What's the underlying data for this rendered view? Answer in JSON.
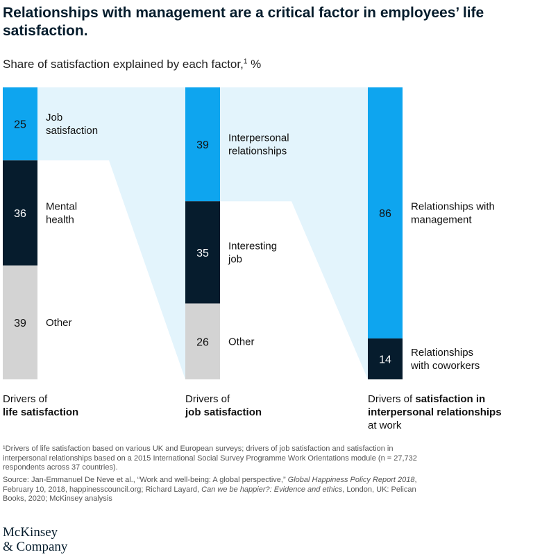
{
  "title": "Relationships with management are a critical factor in employees’ life satisfaction.",
  "subtitle": {
    "text": "Share of satisfaction explained by each factor,",
    "footnote_marker": "1",
    "unit": " %"
  },
  "colors": {
    "accent_blue": "#0ea5ef",
    "dark_navy": "#061c2d",
    "gray": "#d3d3d3",
    "flow_blue": "#e3f4fc"
  },
  "chart_data": {
    "type": "bar",
    "stacked": true,
    "unit": "%",
    "columns": [
      {
        "label_prefix": "Drivers of",
        "label_bold": "life satisfaction",
        "label_suffix": "",
        "segments": [
          {
            "name": "Job satisfaction",
            "value": 25,
            "color": "#0ea5ef"
          },
          {
            "name": "Mental health",
            "value": 36,
            "color": "#061c2d"
          },
          {
            "name": "Other",
            "value": 39,
            "color": "#d3d3d3"
          }
        ]
      },
      {
        "label_prefix": "Drivers of",
        "label_bold": "job satisfaction",
        "label_suffix": "",
        "segments": [
          {
            "name": "Interpersonal relationships",
            "value": 39,
            "color": "#0ea5ef"
          },
          {
            "name": "Interesting job",
            "value": 35,
            "color": "#061c2d"
          },
          {
            "name": "Other",
            "value": 26,
            "color": "#d3d3d3"
          }
        ]
      },
      {
        "label_prefix": "Drivers of",
        "label_bold": "satisfaction in interpersonal relationships",
        "label_suffix": "at work",
        "segments": [
          {
            "name": "Relationships with management",
            "value": 86,
            "color": "#0ea5ef"
          },
          {
            "name": "Relationships with coworkers",
            "value": 14,
            "color": "#061c2d"
          }
        ]
      }
    ],
    "flows": [
      {
        "from_column": 0,
        "from_segment": 0,
        "to_column": 1
      },
      {
        "from_column": 1,
        "from_segment": 0,
        "to_column": 2
      }
    ],
    "segment_label_lines": [
      [
        [
          "Job",
          "satisfaction"
        ],
        [
          "Mental",
          "health"
        ],
        [
          "Other"
        ]
      ],
      [
        [
          "Interpersonal",
          "relationships"
        ],
        [
          "Interesting",
          "job"
        ],
        [
          "Other"
        ]
      ],
      [
        [
          "Relationships with",
          "management"
        ],
        [
          "Relationships",
          "with coworkers"
        ]
      ]
    ]
  },
  "footnote": "¹Drivers of life satisfaction based on various UK and European surveys; drivers of job satisfaction and satisfaction in interpersonal relationships based on a 2015 International Social Survey Programme Work Orientations module (n = 27,732 respondents across 37 countries).",
  "source": {
    "prefix": "Source: Jan-Emmanuel De Neve et al., “Work and well-being: A global perspective,” ",
    "italic1": "Global Happiness Policy Report 2018",
    "mid": ", February 10, 2018, happinesscouncil.org; Richard Layard, ",
    "italic2": "Can we be happier?: Evidence and ethics",
    "suffix": ", London, UK: Pelican Books, 2020; McKinsey analysis"
  },
  "logo": {
    "line1": "McKinsey",
    "line2": "& Company"
  }
}
